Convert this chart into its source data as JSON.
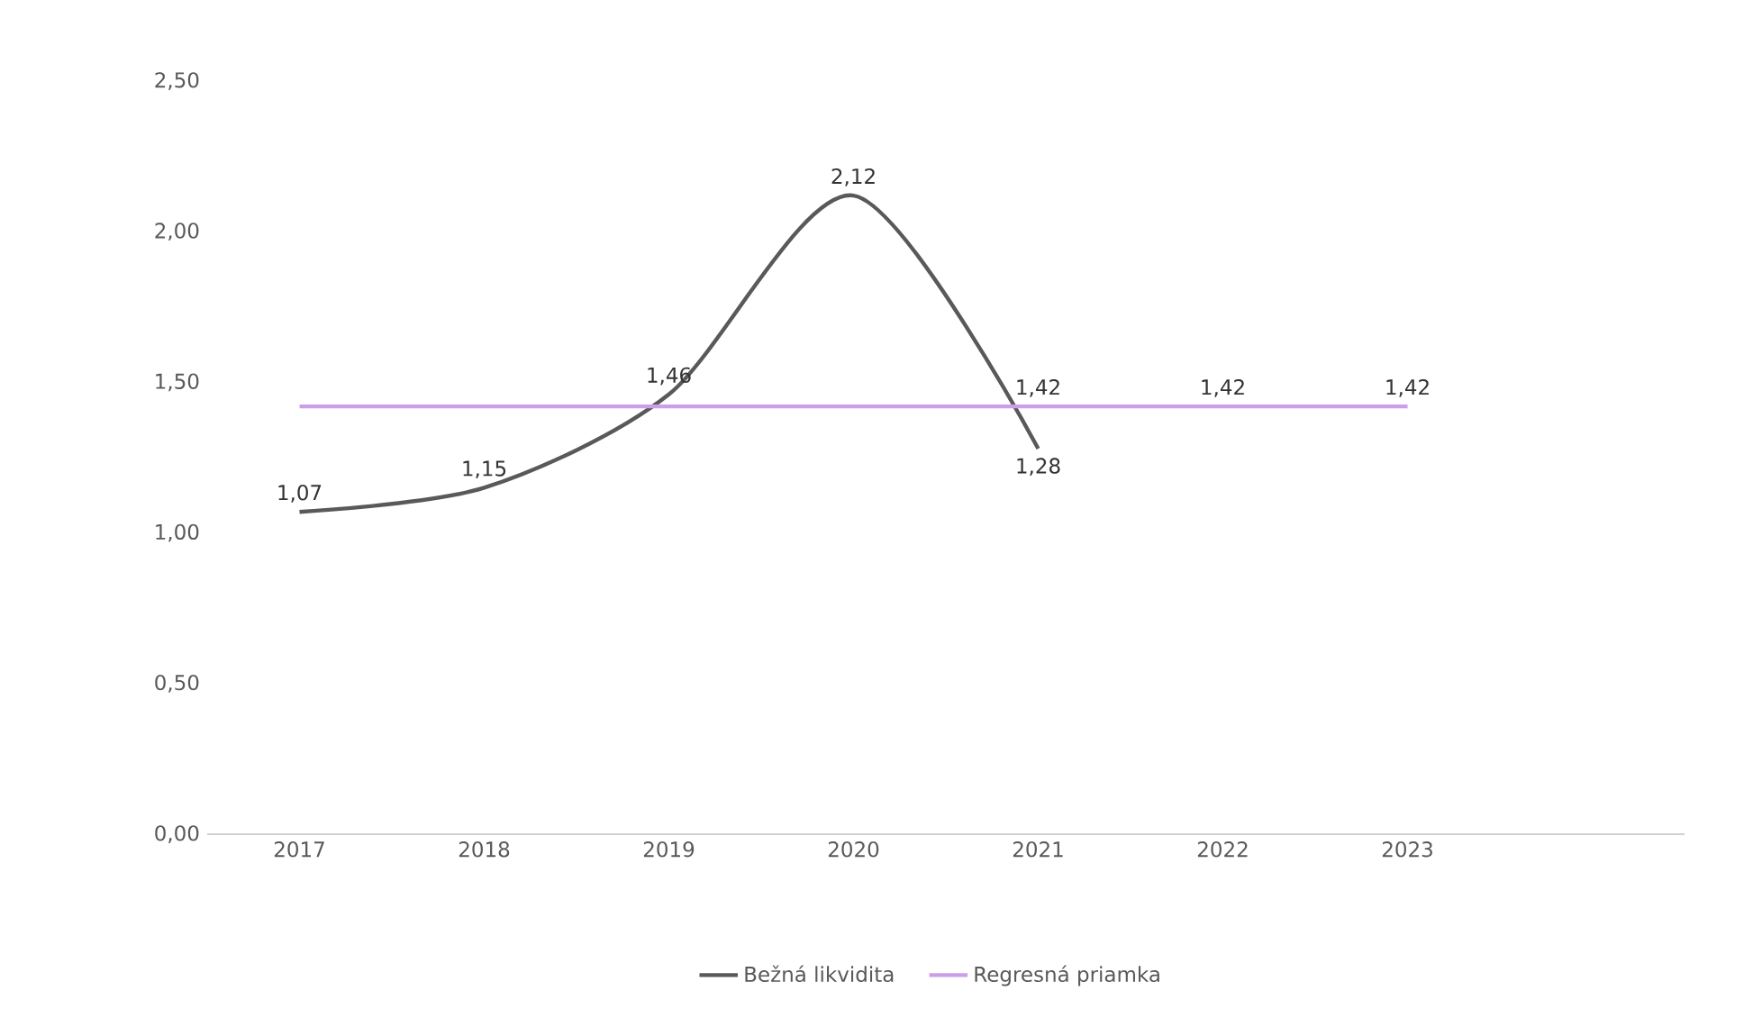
{
  "chart_data": {
    "type": "line",
    "categories": [
      "2017",
      "2018",
      "2019",
      "2020",
      "2021",
      "2022",
      "2023",
      null
    ],
    "series": [
      {
        "name": "Bežná likvidita",
        "color": "#595959",
        "values": [
          1.07,
          1.15,
          1.46,
          2.12,
          1.28,
          null,
          null,
          null
        ],
        "value_labels": [
          "1,07",
          "1,15",
          "1,46",
          "2,12",
          "1,28",
          null,
          null,
          null
        ]
      },
      {
        "name": "Regresná priamka",
        "color": "#cc9eea",
        "values": [
          1.42,
          1.42,
          1.42,
          1.42,
          1.42,
          1.42,
          1.42,
          null
        ],
        "value_labels": [
          null,
          null,
          null,
          null,
          "1,42",
          "1,42",
          "1,42",
          null
        ]
      }
    ],
    "ylim": [
      0,
      2.5
    ],
    "yticks": [
      {
        "value": 0,
        "label": "0,00"
      },
      {
        "value": 0.5,
        "label": "0,50"
      },
      {
        "value": 1,
        "label": "1,00"
      },
      {
        "value": 1.5,
        "label": "1,50"
      },
      {
        "value": 2,
        "label": "2,00"
      },
      {
        "value": 2.5,
        "label": "2,50"
      }
    ],
    "legend": "bottom",
    "marker": "none",
    "line_style": "solid"
  }
}
